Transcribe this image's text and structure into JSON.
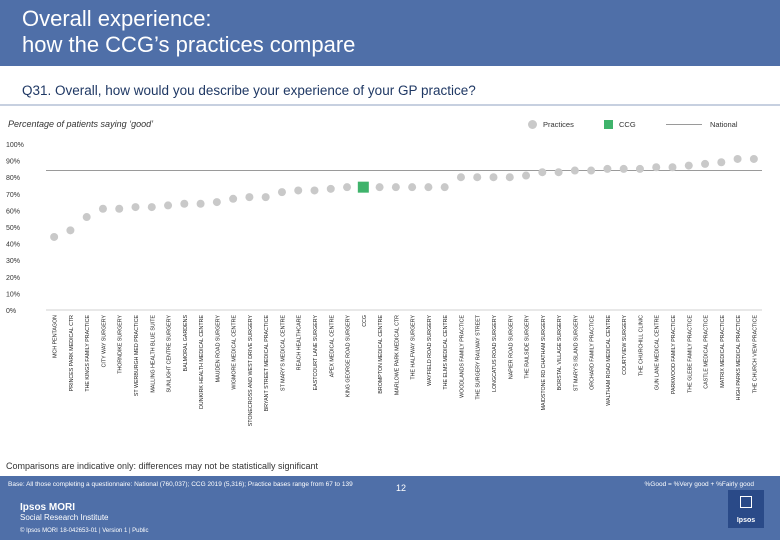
{
  "header": {
    "title_line1": "Overall experience:",
    "title_line2": "how the CCG’s practices compare"
  },
  "question": "Q31. Overall, how would you describe your experience of your GP practice?",
  "subtitle": "Percentage of patients saying ‘good’",
  "legend": {
    "practices": "Practices",
    "ccg": "CCG",
    "national": "National"
  },
  "colors": {
    "header_bg": "#4f6fa8",
    "ccg": "#3fb36b",
    "practice": "#c9c9c9",
    "national": "#9a9a9a"
  },
  "chart_data": {
    "type": "scatter",
    "title": "Percentage of patients saying ‘good’",
    "ylim": [
      0,
      100
    ],
    "y_ticks": [
      "0%",
      "10%",
      "20%",
      "30%",
      "40%",
      "50%",
      "60%",
      "70%",
      "80%",
      "90%",
      "100%"
    ],
    "national": 84,
    "categories": [
      "MCH PENTAGON",
      "PRINCES PARK MEDICAL CTR",
      "THE KINGS FAMILY PRACTICE",
      "CITY WAY SURGERY",
      "THORNDIKE SURGERY",
      "ST WERBURGH MED PRACTICE",
      "MALLING HEALTH BLUE SUITE",
      "SUNLIGHT CENTRE SURGERY",
      "BALMORAL GARDENS",
      "DUNKIRK HEALTH MEDICAL CENTRE",
      "MAUDEN ROAD SURGERY",
      "WIGMORE MEDICAL CENTRE",
      "STONECROSS AND WEST DRIVE SURGERY",
      "BRYANT STREET MEDICAL PRACTICE",
      "ST MARY'S MEDICAL CENTRE",
      "REACH HEALTHCARE",
      "EASTCOURT LANE SURGERY",
      "APEX MEDICAL CENTRE",
      "KING GEORGE ROAD SURGERY",
      "CCG",
      "BROMPTON MEDICAL CENTRE",
      "MARLOWE PARK MEDICAL CTR",
      "THE HALFWAY SURGERY",
      "WAYFIELD ROAD SURGERY",
      "THE ELMS MEDICAL CENTRE",
      "WOODLANDS FAMILY PRACTICE",
      "THE SURGERY RAILWAY STREET",
      "LONGCATUS ROAD SURGERY",
      "NAPIER ROAD SURGERY",
      "THE RAILSIDE SURGERY",
      "MAIDSTONE RD CHATHAM SURGERY",
      "BORSTAL VILLAGE SURGERY",
      "ST MARY'S ISLAND SURGERY",
      "ORCHARD FAMILY PRACTICE",
      "WALTHAM ROAD MEDICAL CENTRE",
      "COURTVIEW SURGERY",
      "THE CHURCHILL CLINIC",
      "GUN LANE MEDICAL CENTRE",
      "PARKWOOD FAMILY PRACTICE",
      "THE GLEBE FAMILY PRACTICE",
      "CASTLE MEDICAL PRACTICE",
      "MATRIX MEDICAL PRACTICE",
      "HIGH PARKS MEDICAL PRACTICE",
      "THE CHURCH VIEW PRACTICE"
    ],
    "values": [
      44,
      48,
      56,
      61,
      61,
      62,
      62,
      63,
      64,
      64,
      65,
      67,
      68,
      68,
      71,
      72,
      72,
      73,
      74,
      74,
      74,
      74,
      74,
      74,
      74,
      80,
      80,
      80,
      80,
      81,
      83,
      83,
      84,
      84,
      85,
      85,
      85,
      86,
      86,
      87,
      88,
      89,
      91,
      91
    ],
    "ccg_index": 19
  },
  "note": "Comparisons are indicative only: differences may not be statistically significant",
  "footer": {
    "base": "Base: All those completing a questionnaire: National (760,037); CCG 2019 (5,316); Practice bases range from 67 to 139",
    "formula": "%Good = %Very good + %Fairly good",
    "page": "12",
    "brand": "Ipsos MORI",
    "brand_sub": "Social Research Institute",
    "copyright": "© Ipsos MORI",
    "doc_id": "18-042653-01 | Version 1 | Public",
    "logo": "Ipsos"
  }
}
